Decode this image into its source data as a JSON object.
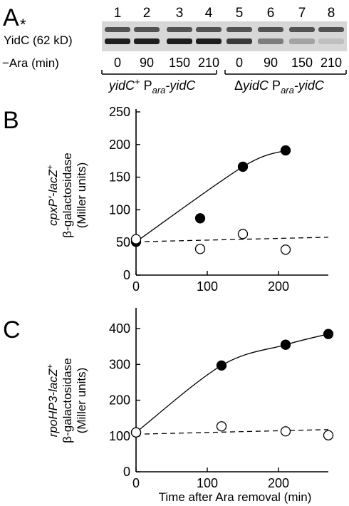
{
  "panel_a": {
    "letter": "A",
    "lanes": [
      "1",
      "2",
      "3",
      "4",
      "5",
      "6",
      "7",
      "8"
    ],
    "asterisk": "*",
    "band_label": "YidC (62 kD)",
    "row_label": "−Ara (min)",
    "times": [
      "0",
      "90",
      "150",
      "210",
      "0",
      "90",
      "150",
      "210"
    ],
    "genotype_1": {
      "part1": "yidC",
      "sup": "+",
      "part2": " P",
      "sub": "ara",
      "part3": "-yidC"
    },
    "genotype_2": {
      "part0": "Δ",
      "part1": "yidC",
      "part2": " P",
      "sub": "ara",
      "part3": "-yidC"
    },
    "yidc_level": [
      0.95,
      0.95,
      0.95,
      0.95,
      0.8,
      0.45,
      0.25,
      0.1
    ]
  },
  "chart_data": [
    {
      "type": "scatter",
      "panel": "B",
      "ylabel_line1": {
        "text": "cpxP'-lacZ",
        "sup": "+"
      },
      "ylabel_line2": "β-galactosidase",
      "ylabel_line3": "(Miller units)",
      "xlim": [
        0,
        270
      ],
      "ylim": [
        0,
        250
      ],
      "xticks": [
        0,
        100,
        200
      ],
      "yticks": [
        0,
        50,
        100,
        150,
        200,
        250
      ],
      "series": [
        {
          "marker": "filled",
          "line": "solid",
          "points": [
            [
              0,
              51
            ],
            [
              90,
              87
            ],
            [
              150,
              166
            ],
            [
              210,
              191
            ]
          ],
          "curve": [
            [
              0,
              51
            ],
            [
              150,
              166
            ],
            [
              210,
              191
            ]
          ]
        },
        {
          "marker": "open",
          "line": "dashed",
          "points": [
            [
              0,
              55
            ],
            [
              90,
              40
            ],
            [
              150,
              63
            ],
            [
              210,
              39
            ]
          ],
          "curve": [
            [
              0,
              51
            ],
            [
              270,
              58
            ]
          ]
        }
      ]
    },
    {
      "type": "scatter",
      "panel": "C",
      "ylabel_line1": {
        "text": "rpoHP3-lacZ",
        "sup": "+"
      },
      "ylabel_line2": "β-galactosidase",
      "ylabel_line3": "(Miller units)",
      "xlabel": "Time after Ara removal (min)",
      "xlim": [
        0,
        270
      ],
      "ylim": [
        0,
        450
      ],
      "xticks": [
        0,
        100,
        200
      ],
      "yticks": [
        0,
        100,
        200,
        300,
        400
      ],
      "series": [
        {
          "marker": "filled",
          "line": "solid",
          "points": [
            [
              0,
              110
            ],
            [
              120,
              297
            ],
            [
              210,
              355
            ],
            [
              270,
              385
            ]
          ],
          "curve": [
            [
              0,
              110
            ],
            [
              120,
              297
            ],
            [
              210,
              355
            ],
            [
              270,
              385
            ]
          ]
        },
        {
          "marker": "open",
          "line": "dashed",
          "points": [
            [
              0,
              110
            ],
            [
              120,
              127
            ],
            [
              210,
              113
            ],
            [
              270,
              102
            ]
          ],
          "curve": [
            [
              0,
              105
            ],
            [
              270,
              118
            ]
          ]
        }
      ]
    }
  ]
}
